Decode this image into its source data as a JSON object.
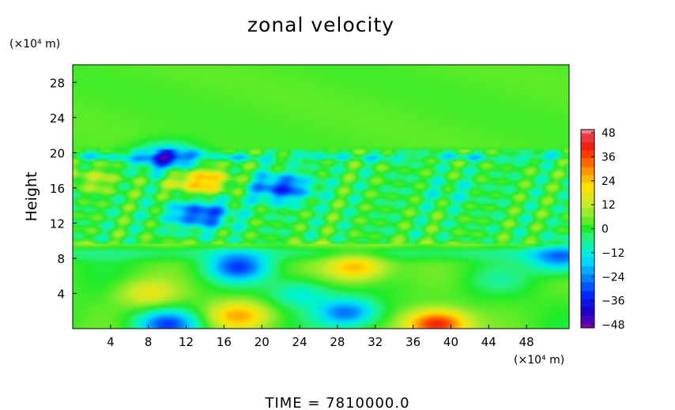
{
  "chart_data": {
    "type": "heatmap",
    "title": "zonal velocity",
    "ylabel": "Height",
    "y_unit": "(×10⁴ m)",
    "x_unit": "(×10⁴ m)",
    "xlim": [
      0,
      52.5
    ],
    "ylim": [
      0,
      30
    ],
    "x_ticks": [
      4,
      8,
      12,
      16,
      20,
      24,
      28,
      32,
      36,
      40,
      44,
      48
    ],
    "y_ticks": [
      4,
      8,
      12,
      16,
      20,
      24,
      28
    ],
    "colorbar": {
      "ticks": [
        48,
        36,
        24,
        12,
        0,
        -12,
        -24,
        -36,
        -48
      ],
      "range": [
        -48,
        48
      ]
    },
    "footer": "TIME  =  7810000.0",
    "features": [
      {
        "x": 17.5,
        "y": 7.0,
        "value": -30
      },
      {
        "x": 30.0,
        "y": 7.0,
        "value": 24
      },
      {
        "x": 38.5,
        "y": 0.5,
        "value": 40
      },
      {
        "x": 10.0,
        "y": 0.5,
        "value": -30
      },
      {
        "x": 29.0,
        "y": 1.8,
        "value": -28
      },
      {
        "x": 17.5,
        "y": 1.5,
        "value": 22
      },
      {
        "x": 24.0,
        "y": 4.0,
        "value": -14
      },
      {
        "x": 45.0,
        "y": 5.5,
        "value": -6
      },
      {
        "x": 51.5,
        "y": 8.0,
        "value": -26
      },
      {
        "x": 13.5,
        "y": 16.8,
        "value": 26
      },
      {
        "x": 22.0,
        "y": 16.0,
        "value": -30
      },
      {
        "x": 13.5,
        "y": 13.0,
        "value": -30
      },
      {
        "x": 10.0,
        "y": 19.4,
        "value": -30
      },
      {
        "x": 2.0,
        "y": 17.0,
        "value": 10
      },
      {
        "x": 40.0,
        "y": 15.5,
        "value": -6
      },
      {
        "x": 8.0,
        "y": 4.0,
        "value": 14
      }
    ],
    "bands": [
      {
        "y": 19.5,
        "value": -20
      },
      {
        "y": 9.6,
        "value": 10
      }
    ]
  }
}
